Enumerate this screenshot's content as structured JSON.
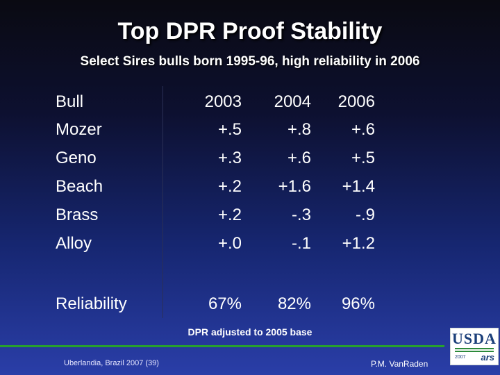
{
  "header": {
    "title": "Top DPR Proof Stability",
    "subtitle": "Select Sires bulls born 1995-96, high reliability in 2006"
  },
  "table": {
    "columns": [
      "Bull",
      "2003",
      "2004",
      "2006"
    ],
    "rows": [
      {
        "bull": "Mozer",
        "y2003": "+.5",
        "y2004": "+.8",
        "y2006": "+.6"
      },
      {
        "bull": "Geno",
        "y2003": "+.3",
        "y2004": "+.6",
        "y2006": "+.5"
      },
      {
        "bull": "Beach",
        "y2003": "+.2",
        "y2004": "+1.6",
        "y2006": "+1.4"
      },
      {
        "bull": "Brass",
        "y2003": "+.2",
        "y2004": "-.3",
        "y2006": "-.9"
      },
      {
        "bull": "Alloy",
        "y2003": "+.0",
        "y2004": "-.1",
        "y2006": "+1.2"
      }
    ],
    "reliability": {
      "label": "Reliability",
      "y2003": "67%",
      "y2004": "82%",
      "y2006": "96%"
    }
  },
  "note": "DPR adjusted to 2005 base",
  "footer": {
    "left": "Uberlandia, Brazil 2007 (39)",
    "right": "P.M. VanRaden"
  },
  "logo": {
    "text": "USDA",
    "year": "2007",
    "ars": "ars"
  },
  "colors": {
    "accent_line": "#27a02e",
    "logo_blue": "#1b3f7a"
  }
}
